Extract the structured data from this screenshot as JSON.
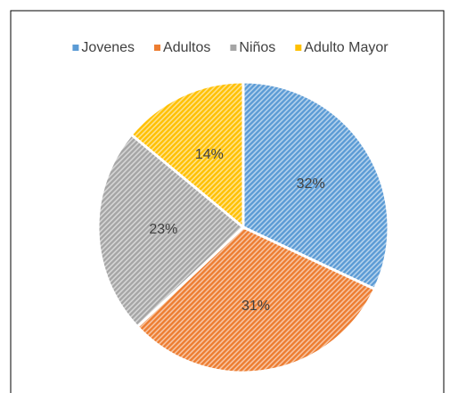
{
  "chart_data": {
    "type": "pie",
    "categories": [
      "Jovenes",
      "Adultos",
      "Niños",
      "Adulto Mayor"
    ],
    "values": [
      32,
      31,
      23,
      14
    ],
    "value_labels": [
      "32%",
      "31%",
      "23%",
      "14%"
    ],
    "colors": [
      "#5b9bd5",
      "#ed7d31",
      "#a5a5a5",
      "#ffc000"
    ],
    "legend": "top"
  }
}
